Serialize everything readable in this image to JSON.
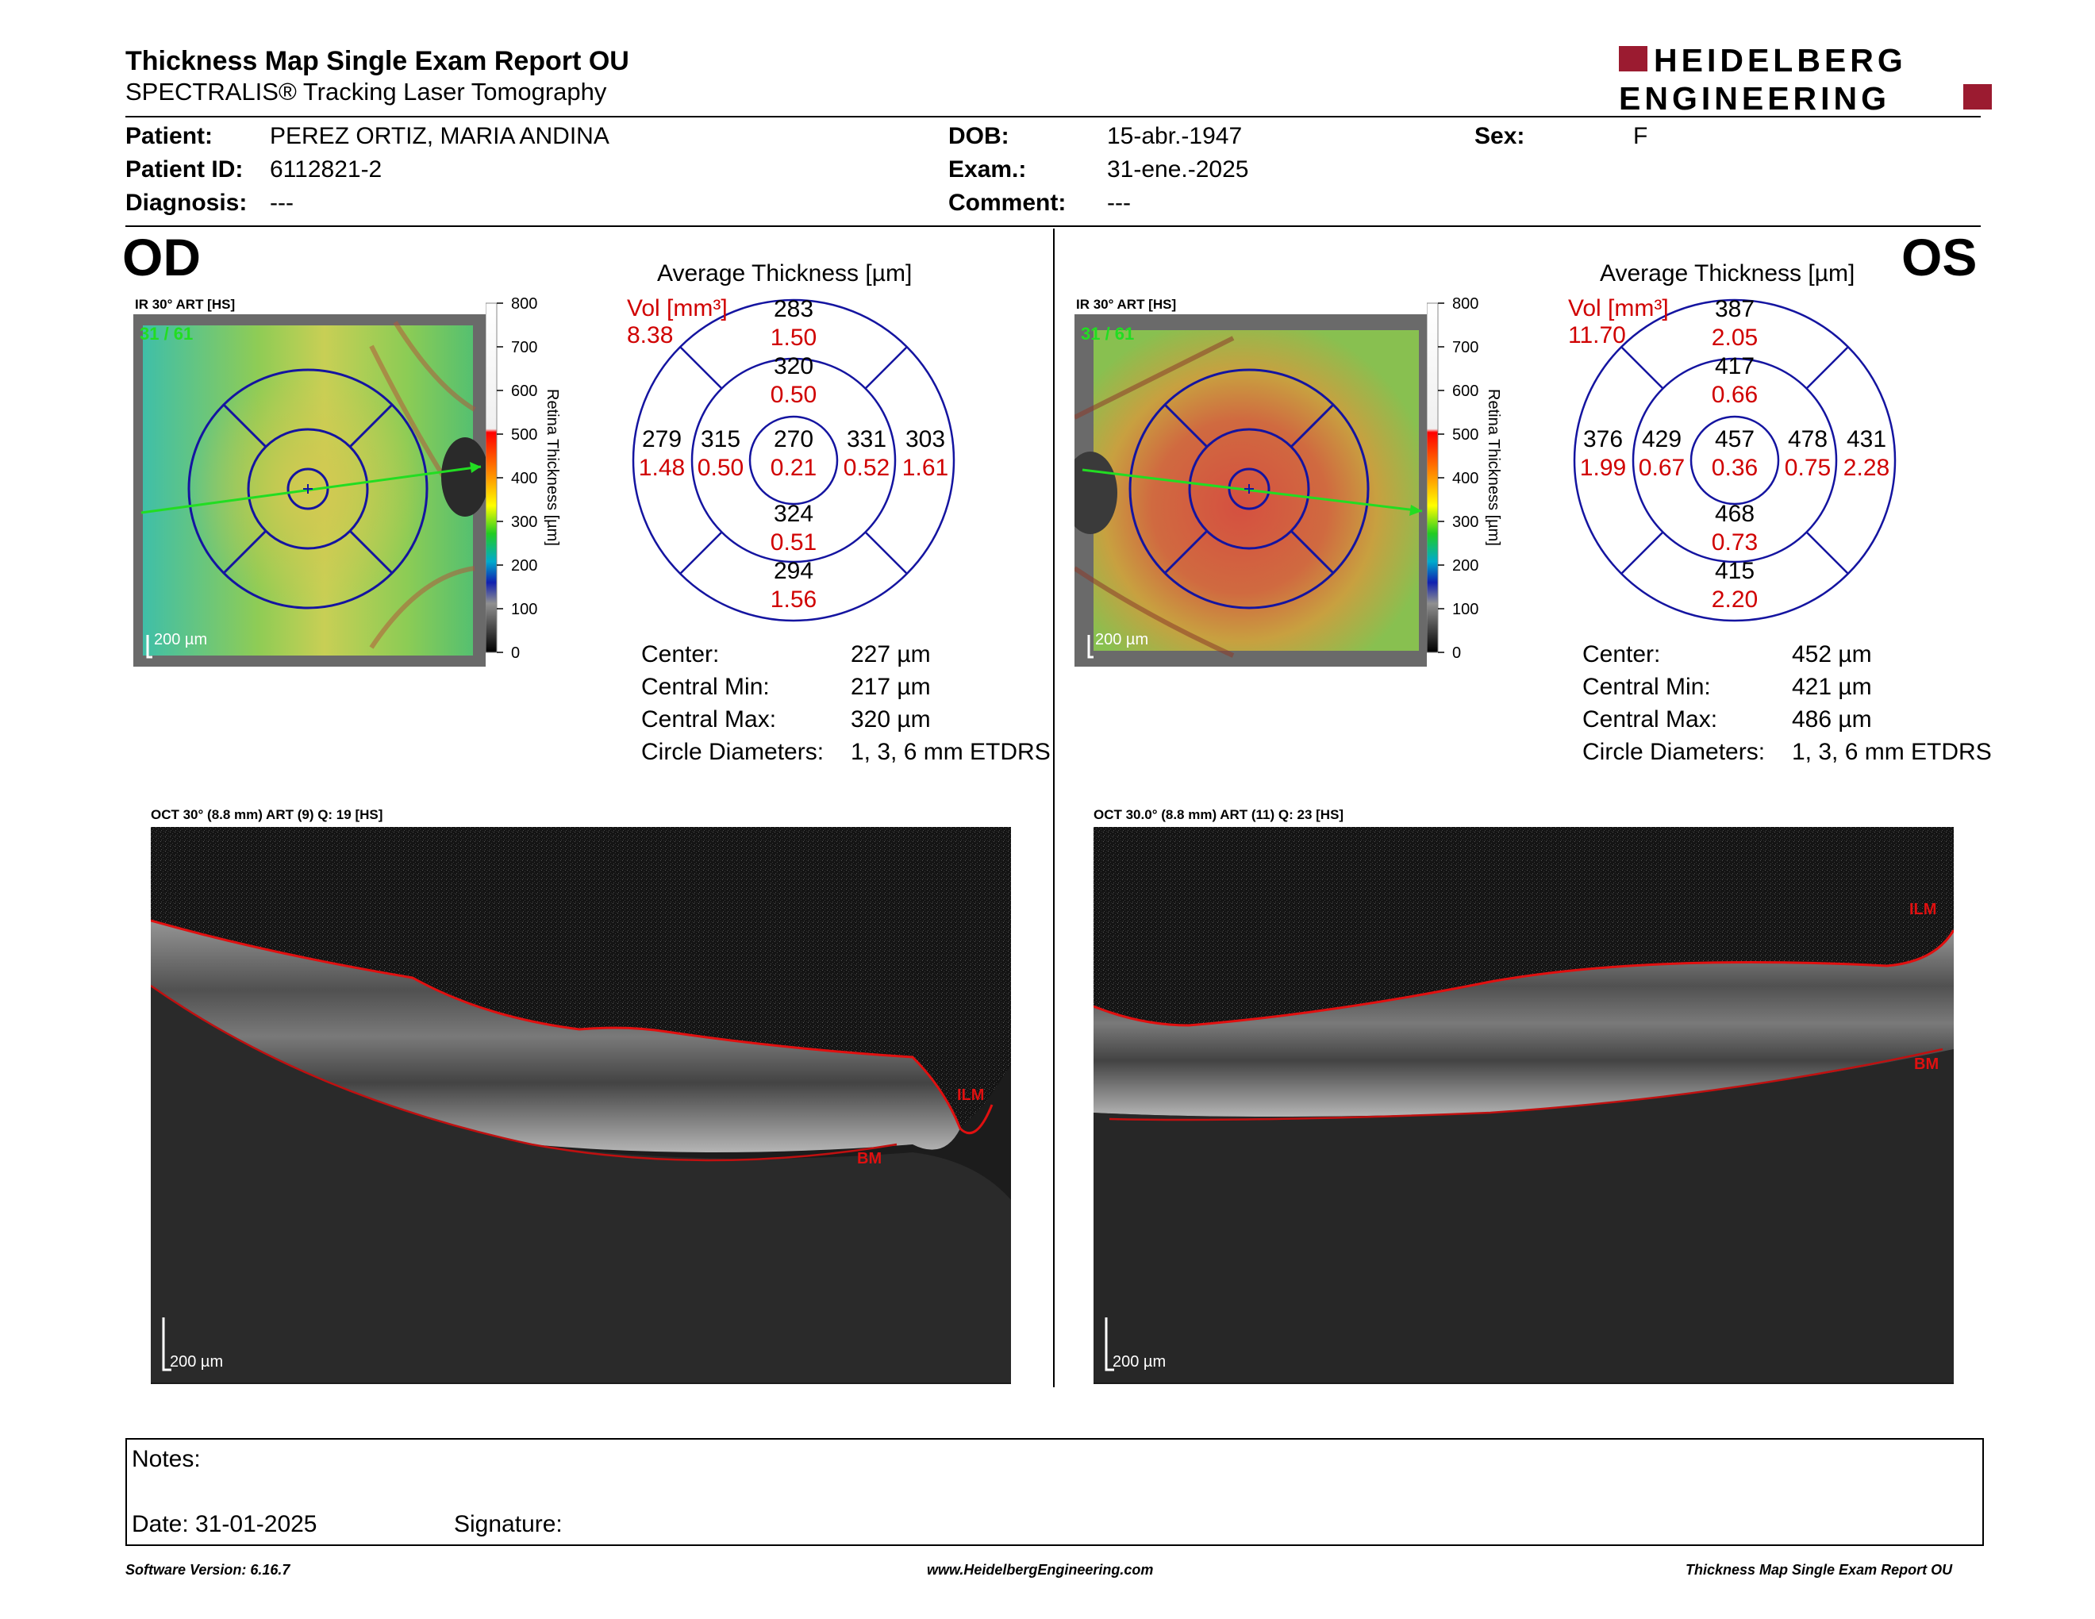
{
  "header": {
    "title": "Thickness Map Single Exam Report OU",
    "subtitle": "SPECTRALIS® Tracking Laser Tomography",
    "logo_line1": "HEIDELBERG",
    "logo_line2": "ENGINEERING"
  },
  "patient": {
    "patient_label": "Patient:",
    "patient_value": "PEREZ ORTIZ, MARIA ANDINA",
    "id_label": "Patient ID:",
    "id_value": "6112821-2",
    "diagnosis_label": "Diagnosis:",
    "diagnosis_value": "---",
    "dob_label": "DOB:",
    "dob_value": "15-abr.-1947",
    "exam_label": "Exam.:",
    "exam_value": "31-ene.-2025",
    "comment_label": "Comment:",
    "comment_value": "---",
    "sex_label": "Sex:",
    "sex_value": "F"
  },
  "od": {
    "eye": "OD",
    "ir_label": "IR 30° ART [HS]",
    "frame": "31 / 61",
    "scale_label": "200 µm",
    "colorbar_ticks": [
      "800",
      "700",
      "600",
      "500",
      "400",
      "300",
      "200",
      "100",
      "0"
    ],
    "colorbar_title": "Retina Thickness [µm]",
    "avg_title": "Average Thickness [µm]",
    "vol_label": "Vol [mm³]",
    "vol_total": "8.38",
    "sectors": {
      "outer_sup": {
        "t": "283",
        "v": "1.50"
      },
      "inner_sup": {
        "t": "320",
        "v": "0.50"
      },
      "outer_left": {
        "t": "279",
        "v": "1.48"
      },
      "inner_left": {
        "t": "315",
        "v": "0.50"
      },
      "center": {
        "t": "270",
        "v": "0.21"
      },
      "inner_right": {
        "t": "331",
        "v": "0.52"
      },
      "outer_right": {
        "t": "303",
        "v": "1.61"
      },
      "inner_inf": {
        "t": "324",
        "v": "0.51"
      },
      "outer_inf": {
        "t": "294",
        "v": "1.56"
      }
    },
    "stats": [
      {
        "k": "Center:",
        "v": "227 µm"
      },
      {
        "k": "Central Min:",
        "v": "217 µm"
      },
      {
        "k": "Central Max:",
        "v": "320 µm"
      },
      {
        "k": "Circle Diameters:",
        "v": "1, 3, 6 mm ETDRS"
      }
    ],
    "oct_label": "OCT 30° (8.8 mm) ART (9) Q: 19 [HS]",
    "oct_scale": "200 µm",
    "ilm": "ILM",
    "bm": "BM"
  },
  "os": {
    "eye": "OS",
    "ir_label": "IR 30° ART [HS]",
    "frame": "31 / 61",
    "scale_label": "200 µm",
    "colorbar_ticks": [
      "800",
      "700",
      "600",
      "500",
      "400",
      "300",
      "200",
      "100",
      "0"
    ],
    "colorbar_title": "Retina Thickness [µm]",
    "avg_title": "Average Thickness [µm]",
    "vol_label": "Vol [mm³]",
    "vol_total": "11.70",
    "sectors": {
      "outer_sup": {
        "t": "387",
        "v": "2.05"
      },
      "inner_sup": {
        "t": "417",
        "v": "0.66"
      },
      "outer_left": {
        "t": "376",
        "v": "1.99"
      },
      "inner_left": {
        "t": "429",
        "v": "0.67"
      },
      "center": {
        "t": "457",
        "v": "0.36"
      },
      "inner_right": {
        "t": "478",
        "v": "0.75"
      },
      "outer_right": {
        "t": "431",
        "v": "2.28"
      },
      "inner_inf": {
        "t": "468",
        "v": "0.73"
      },
      "outer_inf": {
        "t": "415",
        "v": "2.20"
      }
    },
    "stats": [
      {
        "k": "Center:",
        "v": "452 µm"
      },
      {
        "k": "Central Min:",
        "v": "421 µm"
      },
      {
        "k": "Central Max:",
        "v": "486 µm"
      },
      {
        "k": "Circle Diameters:",
        "v": "1, 3, 6 mm ETDRS"
      }
    ],
    "oct_label": "OCT 30.0° (8.8 mm) ART (11) Q: 23 [HS]",
    "oct_scale": "200 µm",
    "ilm": "ILM",
    "bm": "BM"
  },
  "notes": {
    "notes_label": "Notes:",
    "date_label": "Date: 31-01-2025",
    "signature_label": "Signature:"
  },
  "footer": {
    "left": "Software Version: 6.16.7",
    "center": "www.HeidelbergEngineering.com",
    "right": "Thickness Map Single Exam Report OU"
  },
  "colors": {
    "brand_red": "#9b1b30",
    "grid_blue": "#1414a0",
    "value_red": "#d00000",
    "scan_green": "#22dd22",
    "ilm_red": "#e01010"
  }
}
